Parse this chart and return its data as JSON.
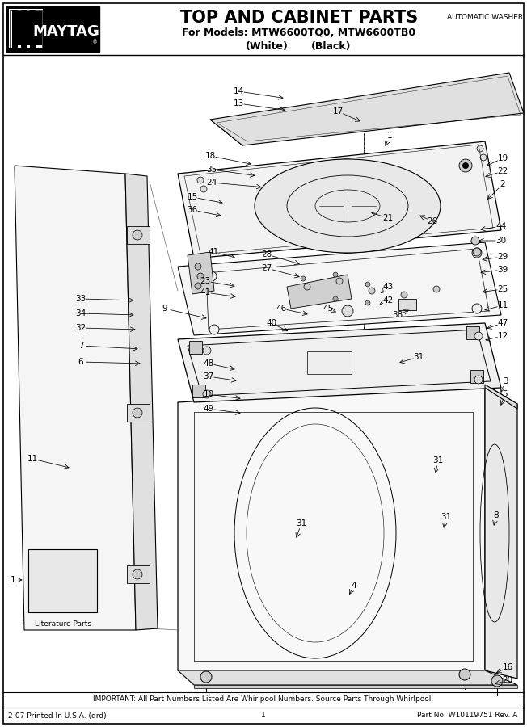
{
  "title": "TOP AND CABINET PARTS",
  "subtitle_line1": "For Models: MTW6600TQ0, MTW6600TB0",
  "subtitle_line2_left": "(White)",
  "subtitle_line2_right": "(Black)",
  "brand": "MAYTAG",
  "category": "AUTOMATIC WASHER",
  "footer_important": "IMPORTANT: All Part Numbers Listed Are Whirlpool Numbers. Source Parts Through Whirlpool.",
  "footer_left": "2-07 Printed In U.S.A. (drd)",
  "footer_center": "1",
  "footer_right": "Part No. W10119751 Rev. A",
  "bg_color": "#ffffff",
  "text_color": "#000000",
  "title_fontsize": 15,
  "subtitle_fontsize": 9,
  "label_fontsize": 7.5,
  "footer_fontsize": 6.5,
  "brand_fontsize": 13
}
